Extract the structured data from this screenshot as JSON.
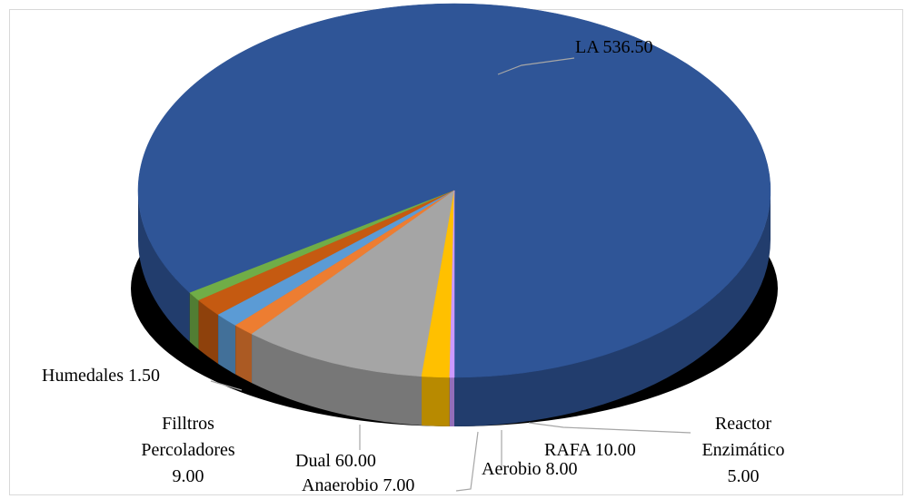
{
  "chart_data": {
    "type": "pie",
    "style": "3d",
    "title": "",
    "legend": "none",
    "slices": [
      {
        "name": "LA",
        "value": 536.5,
        "label": "LA 536.50",
        "color": "#2f5597"
      },
      {
        "name": "Reactor Enzimático",
        "value": 5.0,
        "label_lines": [
          "Reactor",
          "Enzimático",
          "5.00"
        ],
        "color": "#70ad47"
      },
      {
        "name": "RAFA",
        "value": 10.0,
        "label": "RAFA 10.00",
        "color": "#c55a11"
      },
      {
        "name": "Aerobio",
        "value": 8.0,
        "label": "Aerobio 8.00",
        "color": "#5b9bd5"
      },
      {
        "name": "Anaerobio",
        "value": 7.0,
        "label": "Anaerobio 7.00",
        "color": "#ed7d31"
      },
      {
        "name": "Dual",
        "value": 60.0,
        "label": "Dual 60.00",
        "color": "#a5a5a5"
      },
      {
        "name": "Filltros Percoladores",
        "value": 9.0,
        "label_lines": [
          "Filltros",
          "Percoladores",
          "9.00"
        ],
        "color": "#ffc000"
      },
      {
        "name": "Humedales",
        "value": 1.5,
        "label": "Humedales 1.50",
        "color": "#cc99ff"
      }
    ]
  }
}
